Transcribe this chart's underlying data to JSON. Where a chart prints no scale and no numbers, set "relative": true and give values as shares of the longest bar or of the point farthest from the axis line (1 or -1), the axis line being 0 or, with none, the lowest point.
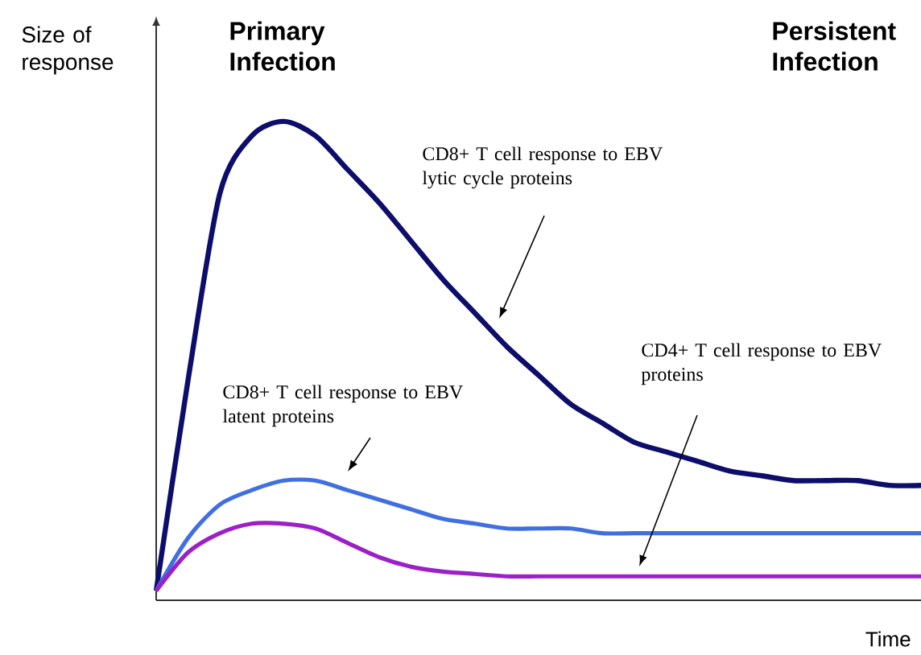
{
  "chart_data": {
    "type": "line",
    "relative": true,
    "ylabel": "Size of response",
    "xlabel": "Time",
    "marker": "none",
    "line_style": "solid",
    "categories": [
      null,
      null,
      null,
      null,
      null,
      null,
      null,
      null,
      null,
      null,
      null,
      null,
      null,
      null,
      null,
      null,
      null,
      null,
      null,
      null,
      null,
      null,
      null,
      null,
      null
    ],
    "series": [
      {
        "color": "#0d0d6b",
        "values": [
          0.02,
          0.46,
          0.85,
          0.97,
          1.0,
          0.97,
          0.9,
          0.83,
          0.75,
          0.67,
          0.6,
          0.53,
          0.47,
          0.41,
          0.37,
          0.33,
          0.31,
          0.29,
          0.27,
          0.26,
          0.25,
          0.25,
          0.25,
          0.24,
          0.24
        ]
      },
      {
        "color": "#3f6fe0",
        "values": [
          0.02,
          0.13,
          0.2,
          0.23,
          0.25,
          0.25,
          0.23,
          0.21,
          0.19,
          0.17,
          0.16,
          0.15,
          0.15,
          0.15,
          0.14,
          0.14,
          0.14,
          0.14,
          0.14,
          0.14,
          0.14,
          0.14,
          0.14,
          0.14,
          0.14
        ]
      },
      {
        "color": "#9b20c8",
        "values": [
          0.02,
          0.1,
          0.14,
          0.16,
          0.16,
          0.15,
          0.12,
          0.09,
          0.07,
          0.06,
          0.055,
          0.05,
          0.05,
          0.05,
          0.05,
          0.05,
          0.05,
          0.05,
          0.05,
          0.05,
          0.05,
          0.05,
          0.05,
          0.05,
          0.05
        ]
      }
    ],
    "annotations": [
      "Primary Infection",
      "Persistent Infection",
      "CD8+ T cell response to EBV lytic cycle proteins",
      "CD8+ T cell response to EBV latent proteins",
      "CD4+ T cell response to EBV proteins"
    ]
  }
}
